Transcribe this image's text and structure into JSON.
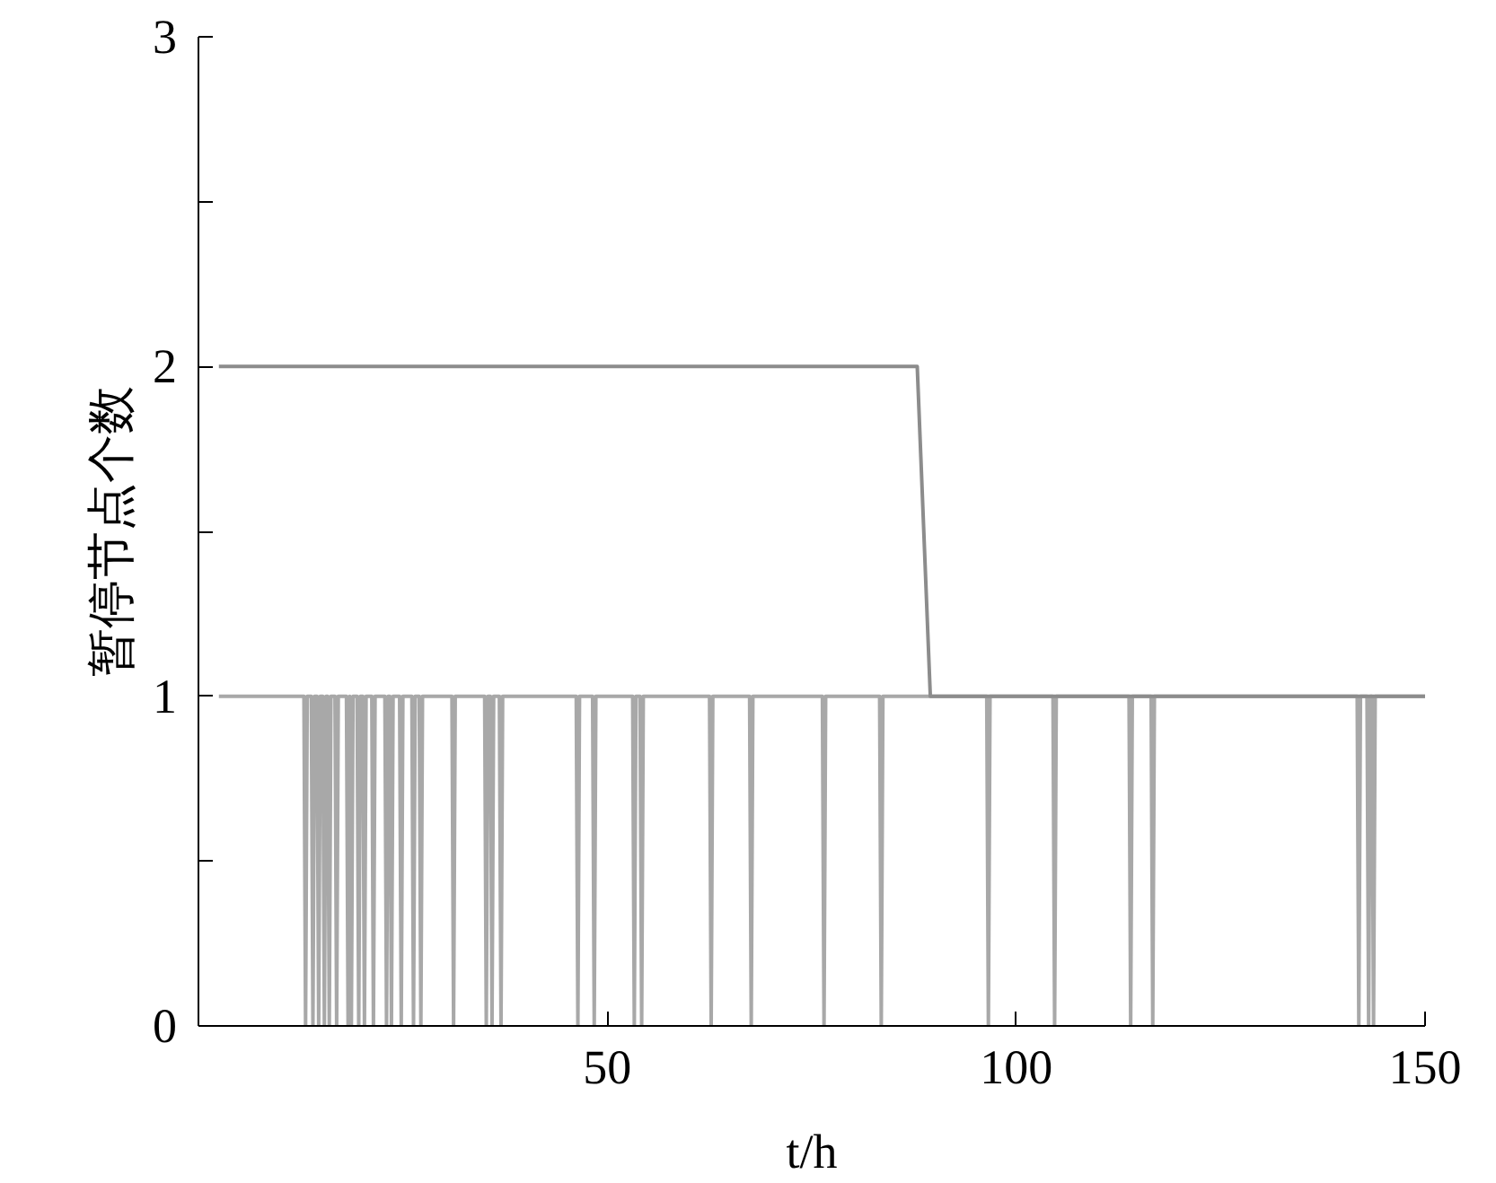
{
  "chart_data": {
    "type": "line",
    "xlabel": "t/h",
    "ylabel": "暂停节点个数",
    "xlim": [
      0,
      150
    ],
    "ylim": [
      0,
      3
    ],
    "xticks": [
      50,
      100,
      150
    ],
    "yticks": [
      0,
      {
        "value": 0.5,
        "label": null
      },
      1,
      {
        "value": 1.5,
        "label": null
      },
      2,
      {
        "value": 2.5,
        "label": null
      },
      3
    ],
    "grid": false,
    "marker": "none",
    "line_style": "solid",
    "series": [
      {
        "color": "#a8a8a8",
        "x": [
          2.5,
          12.9,
          13.1,
          13.3,
          13.8,
          14.0,
          14.2,
          14.5,
          14.7,
          14.9,
          15.2,
          15.4,
          15.6,
          15.8,
          16.0,
          16.2,
          16.7,
          16.9,
          17.1,
          18.1,
          18.3,
          18.5,
          18.5,
          18.7,
          18.9,
          19.4,
          19.6,
          19.8,
          20.1,
          20.3,
          20.5,
          21.2,
          21.4,
          21.6,
          22.8,
          23.0,
          23.2,
          23.4,
          23.6,
          23.8,
          24.6,
          24.8,
          25.0,
          26.1,
          26.3,
          26.5,
          27.0,
          27.2,
          27.4,
          31.0,
          31.2,
          31.4,
          35.0,
          35.2,
          35.4,
          35.7,
          35.9,
          36.1,
          36.8,
          37.0,
          37.2,
          46.2,
          46.4,
          46.6,
          48.2,
          48.4,
          48.6,
          53.1,
          53.3,
          53.5,
          54.0,
          54.2,
          54.4,
          62.5,
          62.7,
          62.9,
          67.4,
          67.6,
          67.8,
          76.3,
          76.5,
          76.7,
          83.3,
          83.5,
          83.7,
          96.4,
          96.6,
          96.8,
          104.5,
          104.7,
          104.9,
          113.8,
          114.0,
          114.2,
          116.5,
          116.7,
          116.9,
          141.7,
          141.9,
          142.1,
          142.9,
          143.1,
          143.3,
          143.5,
          143.7,
          143.9,
          150
        ],
        "values": [
          1,
          1,
          0,
          1,
          1,
          0,
          1,
          1,
          0,
          1,
          1,
          0,
          1,
          1,
          0,
          1,
          1,
          0,
          1,
          1,
          0,
          1,
          1,
          0,
          1,
          1,
          0,
          1,
          1,
          0,
          1,
          1,
          0,
          1,
          1,
          0,
          1,
          1,
          0,
          1,
          1,
          0,
          1,
          1,
          0,
          1,
          1,
          0,
          1,
          1,
          0,
          1,
          1,
          0,
          1,
          1,
          0,
          1,
          1,
          0,
          1,
          1,
          0,
          1,
          1,
          0,
          1,
          1,
          0,
          1,
          1,
          0,
          1,
          1,
          0,
          1,
          1,
          0,
          1,
          1,
          0,
          1,
          1,
          0,
          1,
          1,
          0,
          1,
          1,
          0,
          1,
          1,
          0,
          1,
          1,
          0,
          1,
          1,
          0,
          1,
          1,
          0,
          1,
          1,
          0,
          1,
          1
        ]
      },
      {
        "color": "#8c8c8c",
        "x": [
          2.5,
          87.9,
          89.5,
          150
        ],
        "values": [
          2,
          2,
          1,
          1
        ]
      }
    ]
  }
}
